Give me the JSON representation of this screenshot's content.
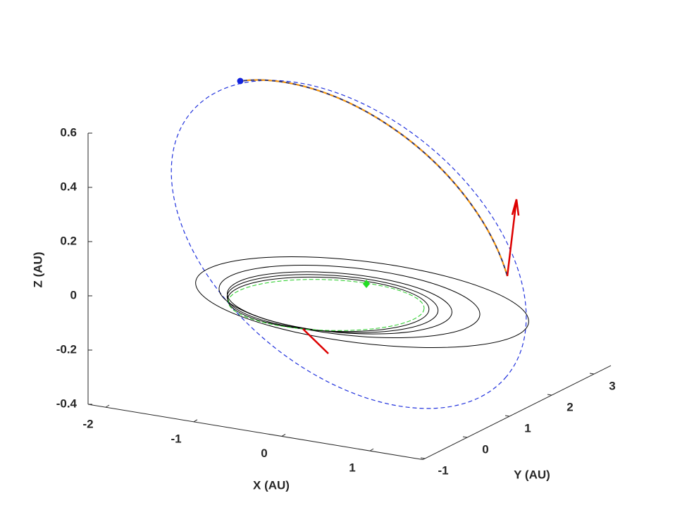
{
  "chart_data": {
    "type": "line3d",
    "xlabel": "X (AU)",
    "ylabel": "Y (AU)",
    "zlabel": "Z (AU)",
    "xlim": [
      -2.2,
      1.6
    ],
    "ylim": [
      -1.05,
      3.4
    ],
    "zlim": [
      -0.4,
      0.6
    ],
    "xticks": [
      -2,
      -1,
      0,
      1
    ],
    "yticks": [
      -1,
      0,
      1,
      2,
      3
    ],
    "zticks": [
      -0.4,
      -0.2,
      0,
      0.2,
      0.4,
      0.6
    ]
  }
}
